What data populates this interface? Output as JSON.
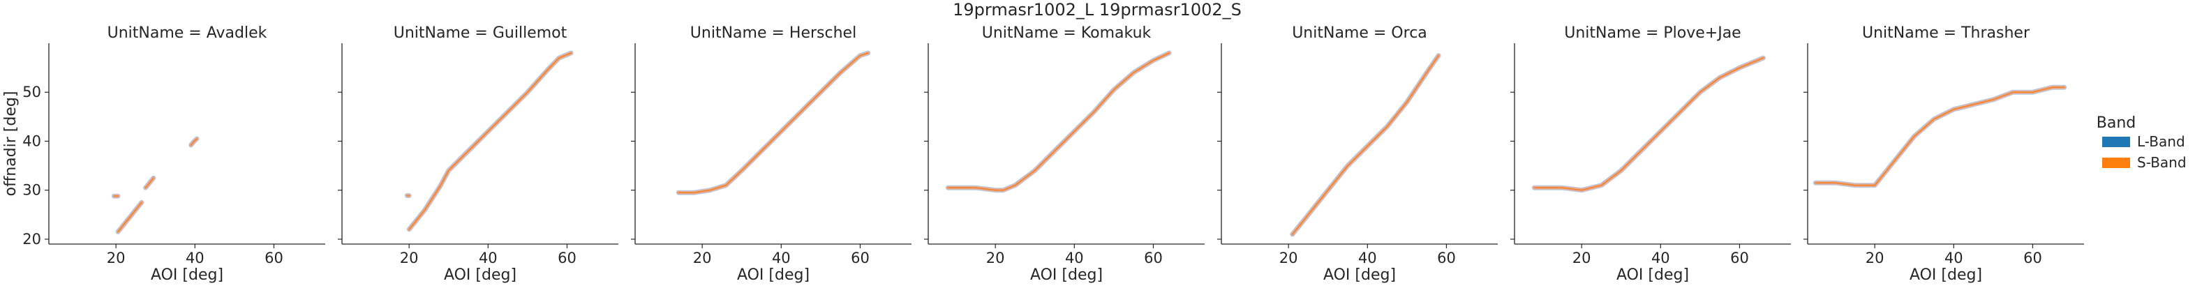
{
  "figure": {
    "suptitle": "19prmasr1002_L 19prmasr1002_S"
  },
  "legend": {
    "title": "Band",
    "entries": [
      {
        "label": "L-Band",
        "color": "#1f77b4",
        "light_color": "#a6c8e8"
      },
      {
        "label": "S-Band",
        "color": "#ff7f0e",
        "light_color": "#f7a88a"
      }
    ]
  },
  "chart_data": {
    "type": "line",
    "xlabel": "AOI [deg]",
    "ylabel": "offnadir [deg]",
    "xlim": [
      3,
      73
    ],
    "ylim": [
      19,
      60
    ],
    "xticks": [
      20,
      40,
      60
    ],
    "yticks": [
      20,
      30,
      40,
      50
    ],
    "grid": false,
    "legend_position": "right",
    "panels": [
      {
        "title": "UnitName = Avadlek",
        "segments": [
          {
            "x": [
              20.5,
              21.5,
              22.5,
              23.5,
              24.5,
              25.5,
              26.5
            ],
            "y": [
              21.5,
              22.5,
              23.5,
              24.5,
              25.5,
              26.5,
              27.5
            ]
          },
          {
            "x": [
              19.5,
              20.5
            ],
            "y": [
              28.8,
              28.8
            ]
          },
          {
            "x": [
              27.5,
              28.5,
              29.5
            ],
            "y": [
              30.5,
              31.5,
              32.5
            ]
          },
          {
            "x": [
              39.0,
              39.7,
              40.5
            ],
            "y": [
              39.2,
              39.9,
              40.5
            ]
          }
        ]
      },
      {
        "title": "UnitName = Guillemot",
        "segments": [
          {
            "x": [
              19.5,
              20.0
            ],
            "y": [
              28.9,
              28.9
            ]
          },
          {
            "x": [
              20.0,
              22.0,
              24.0,
              26.0,
              28.0,
              30.0,
              35.0,
              40.0,
              45.0,
              50.0,
              55.0,
              58.0,
              61.0
            ],
            "y": [
              22.0,
              24.0,
              26.0,
              28.5,
              31.0,
              34.0,
              38.0,
              42.0,
              46.0,
              50.0,
              54.5,
              57.0,
              58.0
            ]
          }
        ]
      },
      {
        "title": "UnitName = Herschel",
        "segments": [
          {
            "x": [
              14.0,
              18.0,
              22.0,
              24.0,
              26.0,
              30.0,
              35.0,
              40.0,
              45.0,
              50.0,
              55.0,
              60.0,
              62.0
            ],
            "y": [
              29.5,
              29.5,
              30.0,
              30.5,
              31.0,
              34.0,
              38.0,
              42.0,
              46.0,
              50.0,
              54.0,
              57.5,
              58.0
            ]
          }
        ]
      },
      {
        "title": "UnitName = Komakuk",
        "segments": [
          {
            "x": [
              8.0,
              15.0,
              20.0,
              22.0,
              25.0,
              30.0,
              35.0,
              40.0,
              45.0,
              50.0,
              55.0,
              60.0,
              64.0
            ],
            "y": [
              30.5,
              30.5,
              30.0,
              30.0,
              31.0,
              34.0,
              38.0,
              42.0,
              46.0,
              50.5,
              54.0,
              56.5,
              58.0
            ]
          }
        ]
      },
      {
        "title": "UnitName = Orca",
        "segments": [
          {
            "x": [
              21.0,
              25.0,
              30.0,
              35.0,
              40.0,
              45.0,
              50.0,
              55.0,
              58.0
            ],
            "y": [
              21.0,
              25.0,
              30.0,
              35.0,
              39.0,
              43.0,
              48.0,
              54.0,
              57.5
            ]
          }
        ]
      },
      {
        "title": "UnitName = Plove+Jae",
        "segments": [
          {
            "x": [
              8.0,
              15.0,
              20.0,
              25.0,
              30.0,
              35.0,
              40.0,
              45.0,
              50.0,
              55.0,
              60.0,
              66.0
            ],
            "y": [
              30.5,
              30.5,
              30.0,
              31.0,
              34.0,
              38.0,
              42.0,
              46.0,
              50.0,
              53.0,
              55.0,
              57.0
            ]
          }
        ]
      },
      {
        "title": "UnitName = Thrasher",
        "segments": [
          {
            "x": [
              5.0,
              10.0,
              15.0,
              20.0,
              25.0,
              30.0,
              35.0,
              40.0,
              45.0,
              50.0,
              55.0,
              60.0,
              65.0,
              68.0
            ],
            "y": [
              31.5,
              31.5,
              31.0,
              31.0,
              36.0,
              41.0,
              44.5,
              46.5,
              47.5,
              48.5,
              50.0,
              50.0,
              51.0,
              51.0
            ]
          }
        ]
      }
    ]
  }
}
